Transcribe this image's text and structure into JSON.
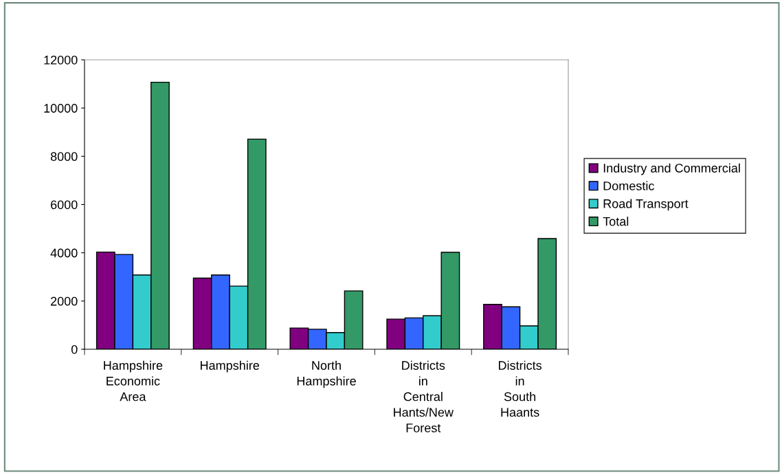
{
  "chart_data": {
    "type": "bar",
    "categories": [
      "Hampshire Economic Area",
      "Hampshire",
      "North Hampshire",
      "Districts in Central Hants/New Forest",
      "Districts in South Haants"
    ],
    "series": [
      {
        "name": "Industry and Commercial",
        "color": "#800080",
        "values": [
          4030,
          2950,
          880,
          1250,
          1860
        ]
      },
      {
        "name": "Domestic",
        "color": "#3366ff",
        "values": [
          3930,
          3080,
          830,
          1300,
          1760
        ]
      },
      {
        "name": "Road Transport",
        "color": "#33cccc",
        "values": [
          3080,
          2620,
          690,
          1390,
          970
        ]
      },
      {
        "name": "Total",
        "color": "#339966",
        "values": [
          11070,
          8710,
          2420,
          4020,
          4590
        ]
      }
    ],
    "ylim": [
      0,
      12000
    ],
    "yticks": [
      0,
      2000,
      4000,
      6000,
      8000,
      10000,
      12000
    ],
    "grid": false,
    "legend": "right"
  }
}
